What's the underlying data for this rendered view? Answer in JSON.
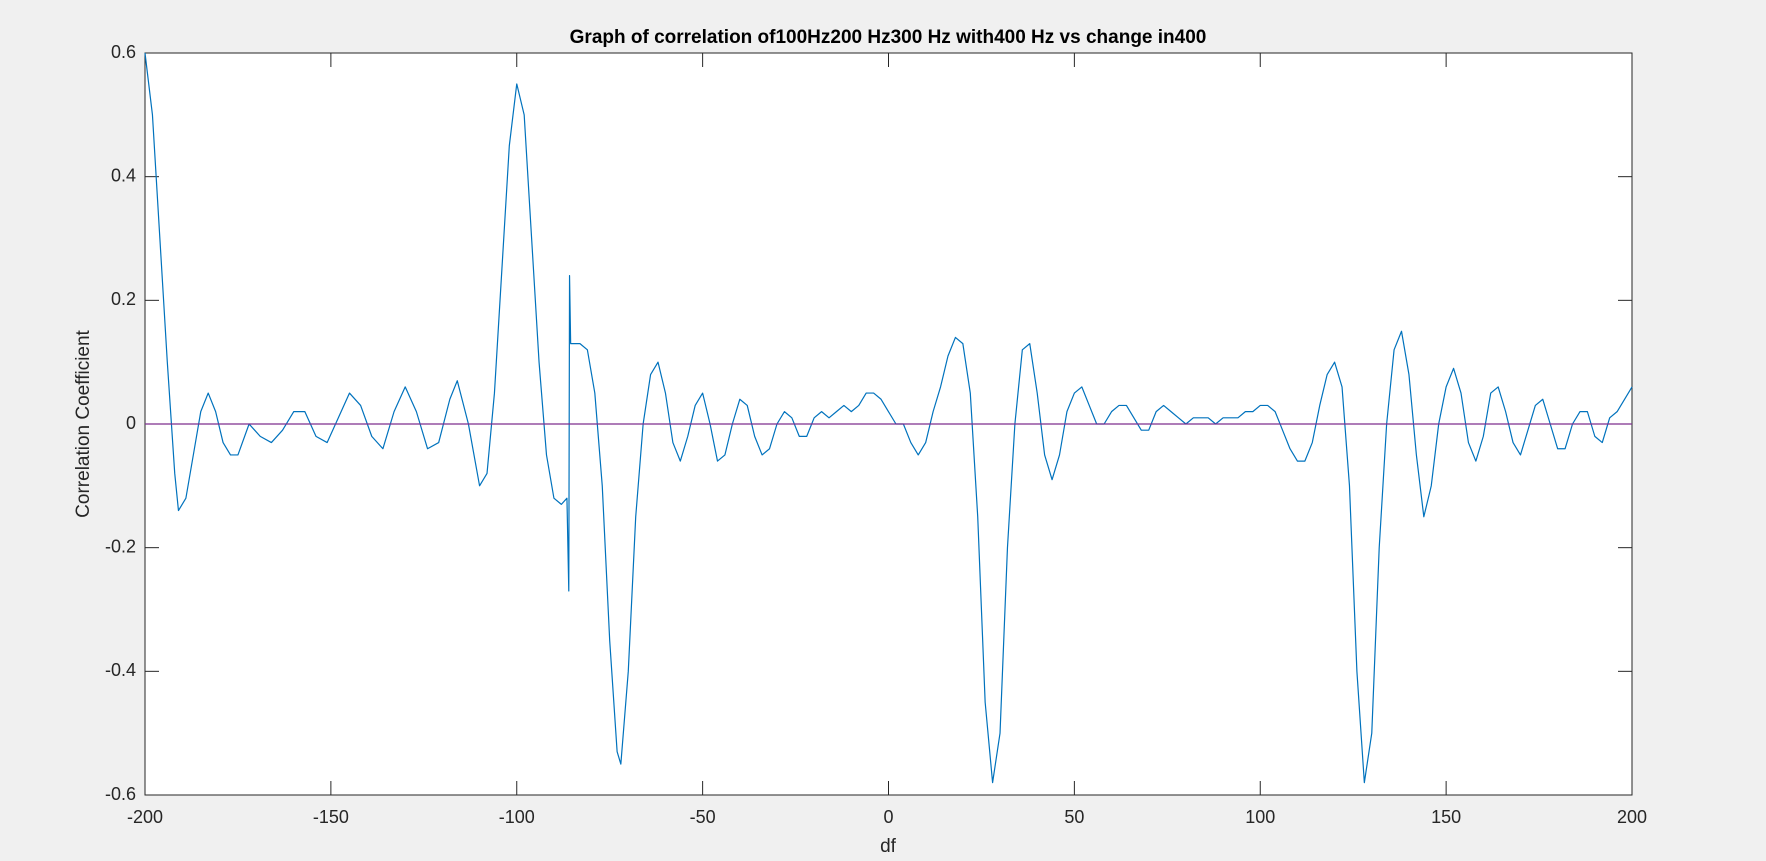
{
  "chart_data": {
    "type": "line",
    "title": "Graph of correlation of100Hz200 Hz300 Hz with400 Hz vs change in400",
    "x_label": "df",
    "y_label": "Correlation Coefficient",
    "xlim": [
      -200,
      200
    ],
    "ylim": [
      -0.6,
      0.6
    ],
    "xticks": [
      -200,
      -150,
      -100,
      -50,
      0,
      50,
      100,
      150,
      200
    ],
    "yticks": [
      -0.6,
      -0.4,
      -0.2,
      0,
      0.2,
      0.4,
      0.6
    ],
    "grid": false,
    "series": [
      {
        "color": "#0072bd",
        "x": [
          -200,
          -198,
          -196,
          -194,
          -192,
          -191,
          -189,
          -187,
          -185,
          -183,
          -181,
          -179,
          -177,
          -175,
          -172,
          -169,
          -166,
          -163,
          -160,
          -157,
          -154,
          -151,
          -148,
          -145,
          -142,
          -139,
          -136,
          -133,
          -130,
          -127,
          -124,
          -121,
          -118,
          -116,
          -113,
          -110,
          -108,
          -106,
          -104,
          -102,
          -100,
          -98,
          -96,
          -94,
          -92,
          -90,
          -88,
          -86.5,
          -86,
          -85.8,
          -85.5,
          -83,
          -81,
          -79,
          -77,
          -75,
          -73,
          -72,
          -70,
          -68,
          -66,
          -64,
          -62,
          -60,
          -58,
          -56,
          -54,
          -52,
          -50,
          -48,
          -46,
          -44,
          -42,
          -40,
          -38,
          -36,
          -34,
          -32,
          -30,
          -28,
          -26,
          -24,
          -22,
          -20,
          -18,
          -16,
          -14,
          -12,
          -10,
          -8,
          -6,
          -4,
          -2,
          0,
          2,
          4,
          6,
          8,
          10,
          12,
          14,
          16,
          18,
          20,
          22,
          24,
          26,
          28,
          30,
          32,
          34,
          36,
          38,
          40,
          42,
          44,
          46,
          48,
          50,
          52,
          54,
          56,
          58,
          60,
          62,
          64,
          66,
          68,
          70,
          72,
          74,
          76,
          78,
          80,
          82,
          84,
          86,
          88,
          90,
          92,
          94,
          96,
          98,
          100,
          102,
          104,
          106,
          108,
          110,
          112,
          114,
          116,
          118,
          120,
          122,
          124,
          126,
          128,
          130,
          132,
          134,
          136,
          138,
          140,
          142,
          144,
          146,
          148,
          150,
          152,
          154,
          156,
          158,
          160,
          162,
          164,
          166,
          168,
          170,
          172,
          174,
          176,
          178,
          180,
          182,
          184,
          186,
          188,
          190,
          192,
          194,
          196,
          198,
          200
        ],
        "values": [
          0.6,
          0.5,
          0.3,
          0.1,
          -0.08,
          -0.14,
          -0.12,
          -0.05,
          0.02,
          0.05,
          0.02,
          -0.03,
          -0.05,
          -0.05,
          0.0,
          -0.02,
          -0.03,
          -0.01,
          0.02,
          0.02,
          -0.02,
          -0.03,
          0.01,
          0.05,
          0.03,
          -0.02,
          -0.04,
          0.02,
          0.06,
          0.02,
          -0.04,
          -0.03,
          0.04,
          0.07,
          0.0,
          -0.1,
          -0.08,
          0.05,
          0.25,
          0.45,
          0.55,
          0.5,
          0.3,
          0.1,
          -0.05,
          -0.12,
          -0.13,
          -0.12,
          -0.27,
          0.24,
          0.13,
          0.13,
          0.12,
          0.05,
          -0.1,
          -0.35,
          -0.53,
          -0.55,
          -0.4,
          -0.15,
          0.0,
          0.08,
          0.1,
          0.05,
          -0.03,
          -0.06,
          -0.02,
          0.03,
          0.05,
          0.0,
          -0.06,
          -0.05,
          0.0,
          0.04,
          0.03,
          -0.02,
          -0.05,
          -0.04,
          0.0,
          0.02,
          0.01,
          -0.02,
          -0.02,
          0.01,
          0.02,
          0.01,
          0.02,
          0.03,
          0.02,
          0.03,
          0.05,
          0.05,
          0.04,
          0.02,
          0.0,
          0.0,
          -0.03,
          -0.05,
          -0.03,
          0.02,
          0.06,
          0.11,
          0.14,
          0.13,
          0.05,
          -0.15,
          -0.45,
          -0.58,
          -0.5,
          -0.2,
          0.0,
          0.12,
          0.13,
          0.05,
          -0.05,
          -0.09,
          -0.05,
          0.02,
          0.05,
          0.06,
          0.03,
          0.0,
          0.0,
          0.02,
          0.03,
          0.03,
          0.01,
          -0.01,
          -0.01,
          0.02,
          0.03,
          0.02,
          0.01,
          0.0,
          0.01,
          0.01,
          0.01,
          0.0,
          0.01,
          0.01,
          0.01,
          0.02,
          0.02,
          0.03,
          0.03,
          0.02,
          -0.01,
          -0.04,
          -0.06,
          -0.06,
          -0.03,
          0.03,
          0.08,
          0.1,
          0.06,
          -0.1,
          -0.4,
          -0.58,
          -0.5,
          -0.2,
          0.0,
          0.12,
          0.15,
          0.08,
          -0.05,
          -0.15,
          -0.1,
          0.0,
          0.06,
          0.09,
          0.05,
          -0.03,
          -0.06,
          -0.02,
          0.05,
          0.06,
          0.02,
          -0.03,
          -0.05,
          -0.01,
          0.03,
          0.04,
          0.0,
          -0.04,
          -0.04,
          0.0,
          0.02,
          0.02,
          -0.02,
          -0.03,
          0.01,
          0.02,
          0.04,
          0.06
        ]
      },
      {
        "color": "#7e2f8e",
        "x": [
          -200,
          200
        ],
        "values": [
          0,
          0
        ]
      }
    ]
  }
}
